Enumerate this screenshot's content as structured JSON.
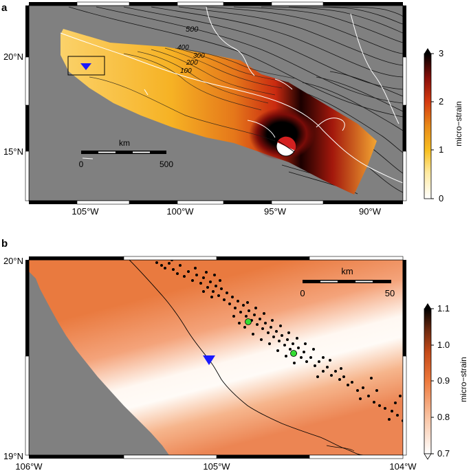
{
  "panel_a": {
    "letter": "a",
    "lat_labels": [
      "20°N",
      "15°N"
    ],
    "lon_labels": [
      "105°W",
      "100°W",
      "95°W",
      "90°W"
    ],
    "contour_labels": [
      "500",
      "400",
      "300",
      "200",
      "100"
    ],
    "scalebar": {
      "unit": "km",
      "start": "0",
      "end": "500"
    },
    "colorbar": {
      "title": "micro−strain",
      "ticks": [
        "3",
        "2",
        "1",
        "0"
      ]
    }
  },
  "panel_b": {
    "letter": "b",
    "lat_labels": [
      "20°N",
      "19°N"
    ],
    "lon_labels": [
      "106°W",
      "105°W",
      "104°W"
    ],
    "scalebar": {
      "unit": "km",
      "start": "0",
      "end": "50"
    },
    "colorbar": {
      "title": "micro−strain",
      "ticks": [
        "1.1",
        "1.0",
        "0.9",
        "0.8",
        "0.7"
      ]
    }
  },
  "colors": {
    "land_gray": "#808080",
    "station_marker": "#1a1aff",
    "highlight_event": "#33dd33"
  },
  "icons": [
    "inverted-triangle-station-icon",
    "focal-mechanism-beachball-icon"
  ]
}
